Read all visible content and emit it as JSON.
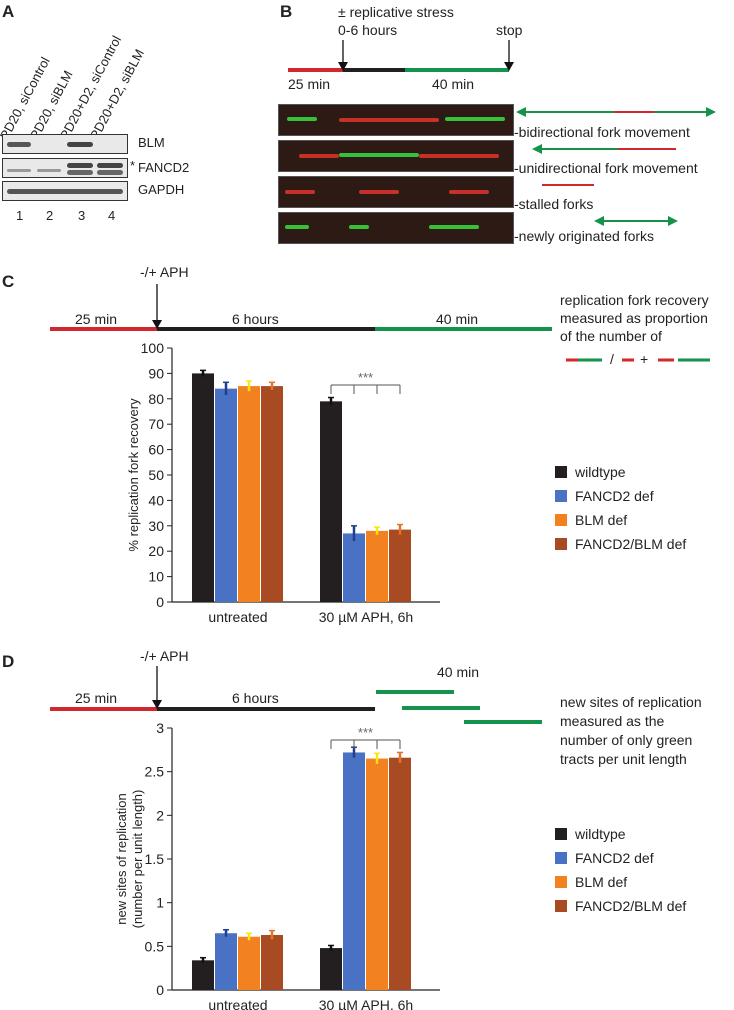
{
  "panels": {
    "a": "A",
    "b": "B",
    "c": "C",
    "d": "D"
  },
  "panel_a": {
    "lanes": [
      "PD20, siControl",
      "PD20, siBLM",
      "PD20+D2, siControl",
      "PD20+D2, siBLM"
    ],
    "lane_numbers": [
      "1",
      "2",
      "3",
      "4"
    ],
    "rows": [
      "BLM",
      "FANCD2",
      "GAPDH"
    ],
    "asterisk": "*"
  },
  "panel_b": {
    "stress_label": "± replicative stress",
    "hours_label": "0-6 hours",
    "stop_label": "stop",
    "red_label": "25 min",
    "green_label": "40 min",
    "fibers": [
      "-bidirectional fork movement",
      "-unidirectional fork movement",
      "-stalled forks",
      "-newly originated forks"
    ]
  },
  "panel_c": {
    "treatment": "-/+ APH",
    "seg1": "25 min",
    "seg2": "6 hours",
    "seg3": "40 min",
    "note_lines": [
      "replication fork recovery",
      "measured as proportion",
      "of the number of"
    ],
    "formula_slash": "/",
    "formula_plus": "+"
  },
  "panel_d": {
    "treatment": "-/+ APH",
    "seg1": "25 min",
    "seg2": "6 hours",
    "seg3": "40 min",
    "note_lines": [
      "new sites of replication",
      "measured as the",
      "number of only green",
      "tracts per unit length"
    ]
  },
  "colors": {
    "wildtype": "#231f20",
    "fancd2": "#4a72c4",
    "blm": "#f2811f",
    "double": "#a84a22",
    "red": "#d0282e",
    "green": "#15924b",
    "black": "#231f20"
  },
  "chart_data": [
    {
      "type": "bar",
      "ylabel": "% replication fork recovery",
      "ylim": [
        0,
        100
      ],
      "yticks": [
        "0",
        "10",
        "20",
        "30",
        "40",
        "50",
        "60",
        "70",
        "80",
        "90",
        "100"
      ],
      "categories": [
        "untreated",
        "30 µM APH, 6h"
      ],
      "series": [
        {
          "name": "wildtype",
          "values": [
            90,
            79
          ],
          "errors": [
            1.2,
            1.5
          ]
        },
        {
          "name": "FANCD2 def",
          "values": [
            84,
            27
          ],
          "errors": [
            2.5,
            3
          ]
        },
        {
          "name": "BLM def",
          "values": [
            85,
            28
          ],
          "errors": [
            2,
            1.5
          ]
        },
        {
          "name": "FANCD2/BLM def",
          "values": [
            85,
            28.5
          ],
          "errors": [
            1.5,
            2
          ]
        }
      ],
      "significance": "***",
      "legend_position": "right",
      "grid": false
    },
    {
      "type": "bar",
      "ylabel": "new sites of replication (number per unit length)",
      "ylim": [
        0,
        3
      ],
      "yticks": [
        "0",
        "0.5",
        "1",
        "1.5",
        "2",
        "2.5",
        "3"
      ],
      "categories": [
        "untreated",
        "30 µM APH, 6h"
      ],
      "series": [
        {
          "name": "wildtype",
          "values": [
            0.34,
            0.48
          ],
          "errors": [
            0.03,
            0.03
          ]
        },
        {
          "name": "FANCD2 def",
          "values": [
            0.65,
            2.72
          ],
          "errors": [
            0.04,
            0.06
          ]
        },
        {
          "name": "BLM def",
          "values": [
            0.61,
            2.65
          ],
          "errors": [
            0.04,
            0.06
          ]
        },
        {
          "name": "FANCD2/BLM def",
          "values": [
            0.63,
            2.66
          ],
          "errors": [
            0.05,
            0.06
          ]
        }
      ],
      "significance": "***",
      "legend_position": "right",
      "grid": false
    }
  ]
}
